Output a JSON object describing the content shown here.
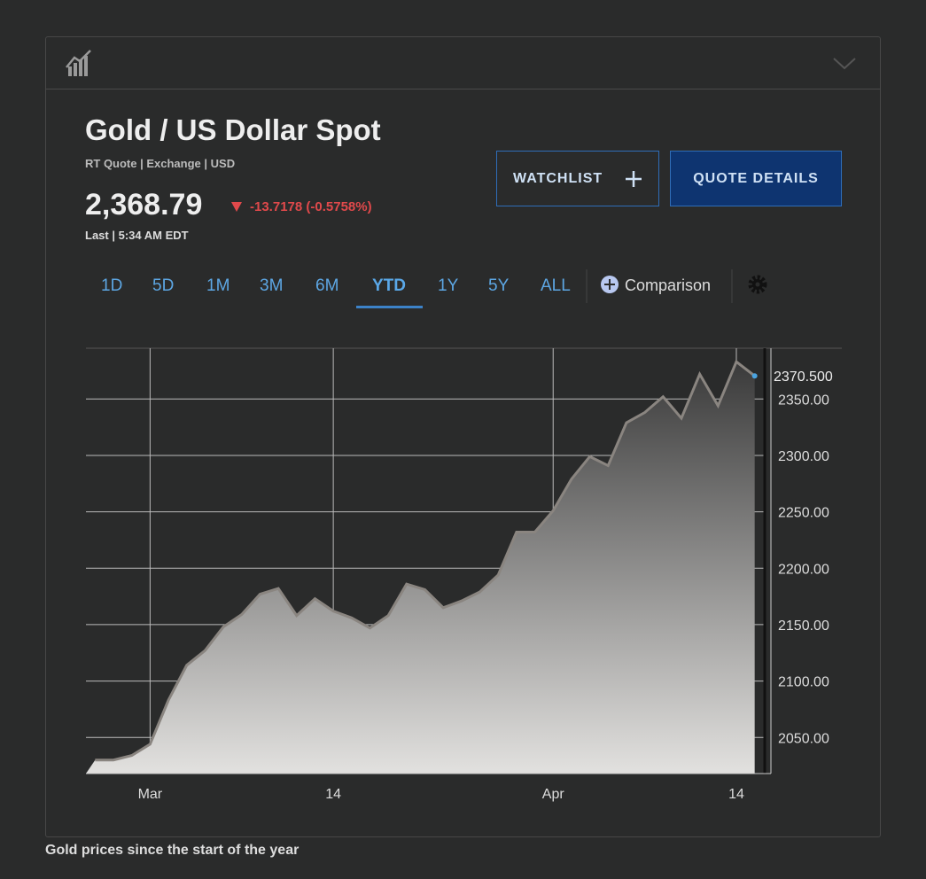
{
  "header": {
    "title": "Gold / US Dollar Spot",
    "subtitle": "RT Quote | Exchange | USD",
    "price": "2,368.79",
    "change": "-13.7178 (-0.5758%)",
    "time": "Last | 5:34 AM EDT"
  },
  "buttons": [
    "WATCHLIST",
    "QUOTE DETAILS"
  ],
  "ranges": [
    "1D",
    "5D",
    "1M",
    "3M",
    "6M",
    "YTD",
    "1Y",
    "5Y",
    "ALL"
  ],
  "active_range": "YTD",
  "comparison": "Comparison",
  "caption": "Gold prices since the start of the year",
  "chart_data": {
    "type": "area",
    "categories": [
      null,
      null,
      null,
      "Mar",
      null,
      null,
      null,
      null,
      null,
      null,
      null,
      null,
      null,
      "14",
      null,
      null,
      null,
      null,
      null,
      null,
      null,
      null,
      null,
      null,
      null,
      "Apr",
      null,
      null,
      null,
      null,
      null,
      null,
      null,
      null,
      null,
      "14",
      null
    ],
    "values": [
      2030,
      2030,
      2034,
      2044,
      2083,
      2114,
      2127,
      2148,
      2159,
      2177,
      2182,
      2158,
      2173,
      2162,
      2156,
      2147,
      2158,
      2186,
      2181,
      2165,
      2171,
      2179,
      2194,
      2232,
      2232,
      2251,
      2279,
      2299,
      2291,
      2329,
      2338,
      2352,
      2333,
      2372,
      2344,
      2383,
      2370.5
    ],
    "value_labels": [
      null,
      null,
      null,
      null,
      null,
      null,
      null,
      null,
      null,
      null,
      null,
      null,
      null,
      null,
      null,
      null,
      null,
      null,
      null,
      null,
      null,
      null,
      null,
      null,
      null,
      null,
      null,
      null,
      null,
      null,
      null,
      null,
      null,
      null,
      null,
      null,
      "2370.500"
    ],
    "color": "#8a8580",
    "ylim": [
      2018,
      2395
    ],
    "yticks": [
      {
        "value": 2050,
        "label": "2050.00"
      },
      {
        "value": 2100,
        "label": "2100.00"
      },
      {
        "value": 2150,
        "label": "2150.00"
      },
      {
        "value": 2200,
        "label": "2200.00"
      },
      {
        "value": 2250,
        "label": "2250.00"
      },
      {
        "value": 2300,
        "label": "2300.00"
      },
      {
        "value": 2350,
        "label": "2350.00"
      }
    ],
    "grid": true
  }
}
